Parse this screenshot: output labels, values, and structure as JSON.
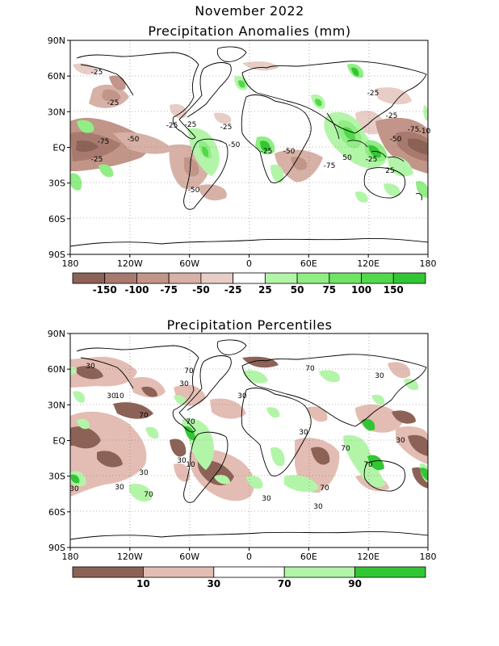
{
  "header": {
    "month_title": "November 2022",
    "map1_title": "Precipitation Anomalies (mm)",
    "map2_title": "Precipitation Percentiles"
  },
  "axes": {
    "lat_labels": [
      "90N",
      "60N",
      "30N",
      "EQ",
      "30S",
      "60S",
      "90S"
    ],
    "lon_labels": [
      "180",
      "120W",
      "60W",
      "0",
      "60E",
      "120E",
      "180"
    ]
  },
  "map1": {
    "colorbar": {
      "colors": [
        "#8c6257",
        "#a87a6e",
        "#c19588",
        "#d7b1a6",
        "#e7cdc5",
        "#ffffff",
        "#b3f5a8",
        "#90ee84",
        "#6fe465",
        "#52d84b",
        "#33c634"
      ],
      "labels": [
        "-150",
        "-100",
        "-75",
        "-50",
        "-25",
        "25",
        "50",
        "75",
        "100",
        "150"
      ]
    },
    "contour_labels": [
      "-25",
      "-25",
      "-75",
      "-50",
      "-25",
      "-25",
      "-25",
      "-50",
      "-25",
      "-50",
      "-25",
      "-50",
      "-75",
      "-25",
      "-25",
      "-75",
      "-10",
      "50",
      "-25",
      "25",
      "-50"
    ]
  },
  "map2": {
    "colorbar": {
      "colors": [
        "#8c6257",
        "#e3bdb3",
        "#ffffff",
        "#b3f5a8",
        "#33c634"
      ],
      "labels": [
        "10",
        "30",
        "70",
        "90"
      ]
    },
    "contour_labels": [
      "30",
      "30",
      "70",
      "70",
      "30",
      "10",
      "30",
      "70",
      "30",
      "70",
      "30",
      "70",
      "10",
      "30",
      "30",
      "70",
      "70",
      "30",
      "30",
      "30",
      "70",
      "30",
      "30"
    ]
  }
}
